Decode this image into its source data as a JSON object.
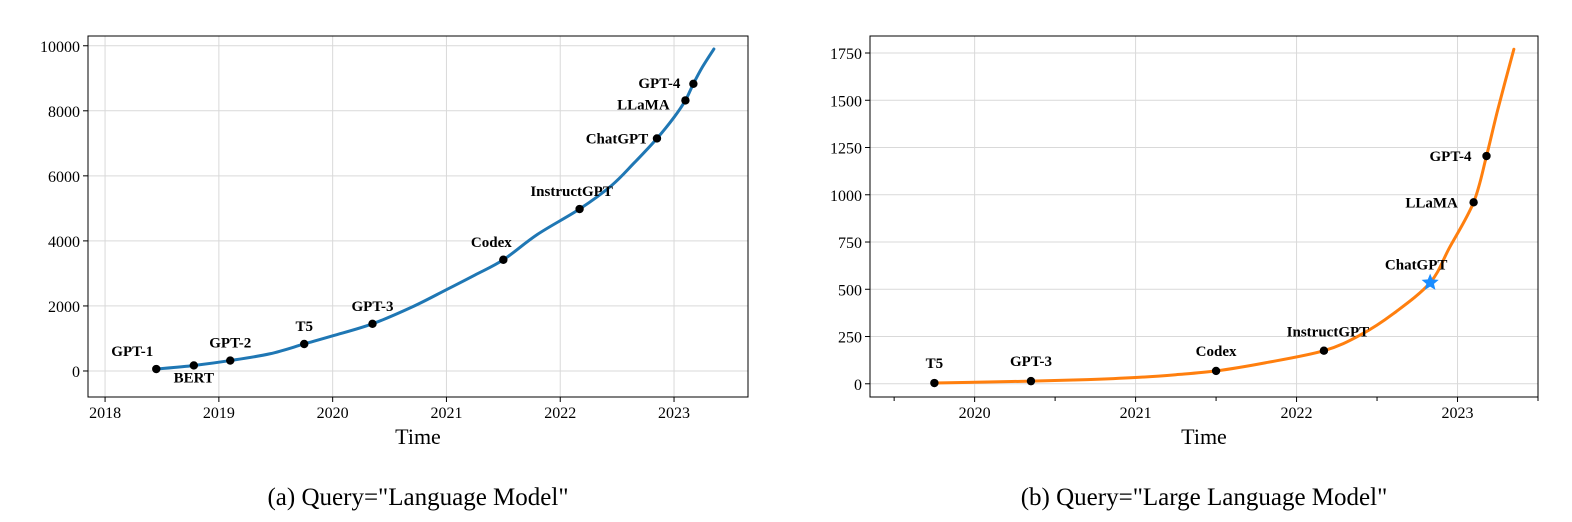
{
  "chart_data": [
    {
      "type": "line",
      "xlabel": "Time",
      "ylabel": "",
      "caption": "(a) Query=\"Language Model\"",
      "xlim": [
        2017.85,
        2023.65
      ],
      "ylim": [
        -800,
        10300
      ],
      "x_ticks": [
        2018,
        2019,
        2020,
        2021,
        2022,
        2023
      ],
      "x_tick_labels": [
        "2018",
        "2019",
        "2020",
        "2021",
        "2022",
        "2023"
      ],
      "y_ticks": [
        0,
        2000,
        4000,
        6000,
        8000,
        10000
      ],
      "y_tick_labels": [
        "0",
        "2000",
        "4000",
        "6000",
        "8000",
        "10000"
      ],
      "grid": true,
      "line_color": "#1f77b4",
      "series": [
        {
          "x": [
            2018.45,
            2018.78,
            2019.1,
            2019.45,
            2019.75,
            2020.0,
            2020.35,
            2020.7,
            2021.0,
            2021.25,
            2021.5,
            2021.8,
            2022.17,
            2022.45,
            2022.65,
            2022.85,
            2023.0,
            2023.1,
            2023.17,
            2023.25,
            2023.35
          ],
          "y": [
            60,
            170,
            320,
            530,
            830,
            1080,
            1450,
            1970,
            2500,
            2950,
            3420,
            4200,
            4980,
            5700,
            6400,
            7150,
            7800,
            8320,
            8830,
            9350,
            9900
          ]
        }
      ],
      "points": [
        {
          "label": "GPT-1",
          "x": 2018.45,
          "y": 60,
          "dx": -24,
          "dy": -13
        },
        {
          "label": "BERT",
          "x": 2018.78,
          "y": 170,
          "dx": 0,
          "dy": 17
        },
        {
          "label": "GPT-2",
          "x": 2019.1,
          "y": 320,
          "dx": 0,
          "dy": -13
        },
        {
          "label": "T5",
          "x": 2019.75,
          "y": 830,
          "dx": 0,
          "dy": -13
        },
        {
          "label": "GPT-3",
          "x": 2020.35,
          "y": 1450,
          "dx": 0,
          "dy": -13
        },
        {
          "label": "Codex",
          "x": 2021.5,
          "y": 3420,
          "dx": -12,
          "dy": -13
        },
        {
          "label": "InstructGPT",
          "x": 2022.17,
          "y": 4980,
          "dx": -8,
          "dy": -13
        },
        {
          "label": "ChatGPT",
          "x": 2022.85,
          "y": 7150,
          "dx": -40,
          "dy": 5
        },
        {
          "label": "LLaMA",
          "x": 2023.1,
          "y": 8320,
          "dx": -42,
          "dy": 9
        },
        {
          "label": "GPT-4",
          "x": 2023.17,
          "y": 8830,
          "dx": -34,
          "dy": 4
        }
      ],
      "highlight": null
    },
    {
      "type": "line",
      "xlabel": "Time",
      "ylabel": "",
      "caption": "(b) Query=\"Large Language Model\"",
      "xlim": [
        2019.35,
        2023.5
      ],
      "ylim": [
        -70,
        1840
      ],
      "x_ticks": [
        2020,
        2021,
        2022,
        2023
      ],
      "x_tick_labels": [
        "2020",
        "2021",
        "2022",
        "2023"
      ],
      "x_minor_ticks": [
        2019.5,
        2020.5,
        2021.5,
        2022.5,
        2023.5
      ],
      "y_ticks": [
        0,
        250,
        500,
        750,
        1000,
        1250,
        1500,
        1750
      ],
      "y_tick_labels": [
        "0",
        "250",
        "500",
        "750",
        "1000",
        "1250",
        "1500",
        "1750"
      ],
      "grid": true,
      "line_color": "#ff7f0e",
      "series": [
        {
          "x": [
            2019.75,
            2020.0,
            2020.35,
            2020.7,
            2021.0,
            2021.25,
            2021.5,
            2021.8,
            2022.17,
            2022.4,
            2022.6,
            2022.83,
            2022.95,
            2023.1,
            2023.18,
            2023.25,
            2023.35
          ],
          "y": [
            4,
            8,
            14,
            22,
            33,
            48,
            68,
            110,
            175,
            260,
            370,
            535,
            720,
            960,
            1205,
            1450,
            1770
          ]
        }
      ],
      "points": [
        {
          "label": "T5",
          "x": 2019.75,
          "y": 4,
          "dx": 0,
          "dy": -15
        },
        {
          "label": "GPT-3",
          "x": 2020.35,
          "y": 14,
          "dx": 0,
          "dy": -15
        },
        {
          "label": "Codex",
          "x": 2021.5,
          "y": 68,
          "dx": 0,
          "dy": -15
        },
        {
          "label": "InstructGPT",
          "x": 2022.17,
          "y": 175,
          "dx": 4,
          "dy": -14
        },
        {
          "label": "LLaMA",
          "x": 2023.1,
          "y": 960,
          "dx": -42,
          "dy": 5
        },
        {
          "label": "GPT-4",
          "x": 2023.18,
          "y": 1205,
          "dx": -36,
          "dy": 5
        }
      ],
      "highlight": {
        "label": "ChatGPT",
        "x": 2022.83,
        "y": 535,
        "dx": -14,
        "dy": -13,
        "color": "#1a8cff"
      }
    }
  ]
}
